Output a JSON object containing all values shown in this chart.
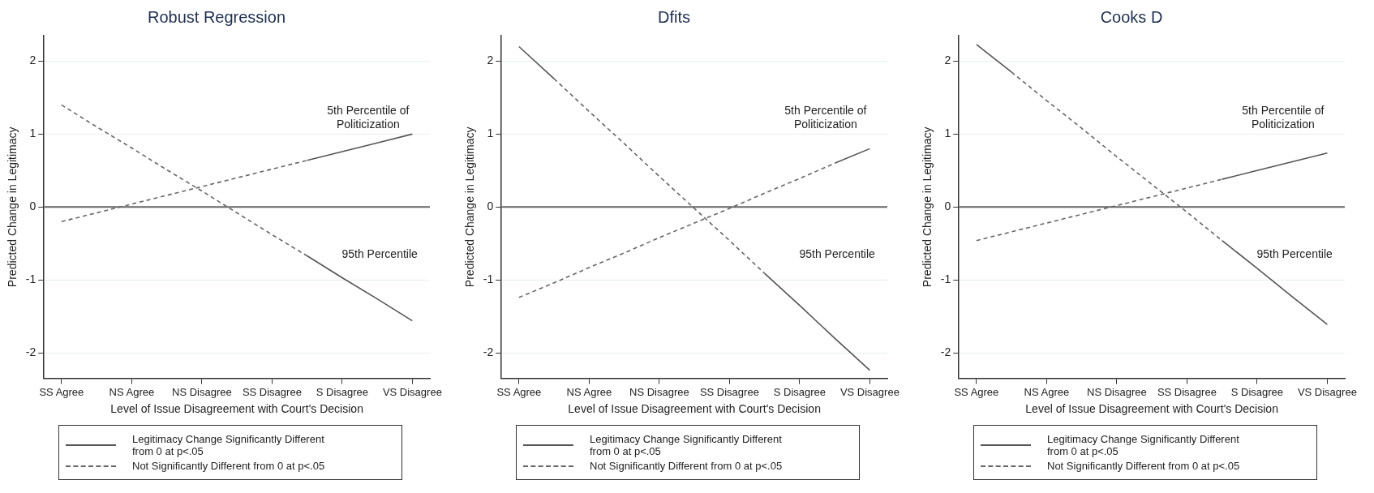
{
  "chart_data": [
    {
      "type": "line",
      "title": "Robust Regression",
      "xlabel": "Level of Issue Disagreement with Court's Decision",
      "ylabel": "Predicted Change in Legitimacy",
      "categories": [
        "SS Agree",
        null,
        "NS Agree",
        null,
        "NS Disagree",
        null,
        "SS Disagree",
        null,
        "S Disagree",
        null,
        "VS Disagree"
      ],
      "ylim": [
        -2.35,
        2.35
      ],
      "yticks": [
        -2,
        -1,
        0,
        1,
        2
      ],
      "grid": "y",
      "legend": "bottom",
      "series": [
        {
          "name": "Legitimacy Change Significantly Different from 0 at p<.05",
          "color": "#555555",
          "line_style": "solid",
          "values": [
            null,
            null,
            null,
            null,
            null,
            null,
            null,
            0.64,
            0.76,
            0.88,
            1.0
          ]
        },
        {
          "name": "Not Significantly Different from 0 at p<.05",
          "color": "#666666",
          "line_style": "dashed",
          "values": [
            -0.2,
            -0.08,
            0.04,
            0.16,
            0.28,
            0.4,
            0.52,
            0.64,
            null,
            null,
            null
          ]
        },
        {
          "color": "#555555",
          "line_style": "solid",
          "values": [
            null,
            null,
            null,
            null,
            null,
            null,
            null,
            -0.67,
            -0.97,
            -1.26,
            -1.56
          ]
        },
        {
          "color": "#666666",
          "line_style": "dashed",
          "values": [
            1.4,
            1.1,
            0.81,
            0.51,
            0.22,
            -0.08,
            -0.38,
            -0.67,
            null,
            null,
            null
          ]
        }
      ],
      "ref_lines": [
        {
          "axis": "y",
          "value": 0,
          "color": "#666666"
        }
      ],
      "annotations": [
        "5th Percentile of Politicization",
        "95th Percentile"
      ]
    },
    {
      "type": "line",
      "title": "Dfits",
      "xlabel": "Level of Issue Disagreement with Court's Decision",
      "ylabel": "Predicted Change in Legitimacy",
      "categories": [
        "SS Agree",
        null,
        "NS Agree",
        null,
        "NS Disagree",
        null,
        "SS Disagree",
        null,
        "S Disagree",
        null,
        "VS Disagree"
      ],
      "ylim": [
        -2.35,
        2.35
      ],
      "yticks": [
        -2,
        -1,
        0,
        1,
        2
      ],
      "grid": "y",
      "legend": "bottom",
      "series": [
        {
          "name": "Legitimacy Change Significantly Different from 0 at p<.05",
          "color": "#555555",
          "line_style": "solid",
          "values": [
            null,
            null,
            null,
            null,
            null,
            null,
            null,
            null,
            null,
            0.6,
            0.8
          ]
        },
        {
          "name": "Not Significantly Different from 0 at p<.05",
          "color": "#666666",
          "line_style": "dashed",
          "values": [
            -1.24,
            -1.04,
            -0.83,
            -0.63,
            -0.42,
            -0.22,
            -0.02,
            0.19,
            0.39,
            0.6,
            null
          ]
        },
        {
          "color": "#555555",
          "line_style": "solid",
          "values": [
            2.2,
            1.76,
            null,
            null,
            null,
            null,
            null,
            -0.91,
            -1.35,
            -1.8,
            -2.24
          ]
        },
        {
          "color": "#666666",
          "line_style": "dashed",
          "values": [
            null,
            1.76,
            1.31,
            0.87,
            0.42,
            -0.02,
            -0.46,
            -0.91,
            null,
            null,
            null
          ]
        }
      ],
      "ref_lines": [
        {
          "axis": "y",
          "value": 0,
          "color": "#666666"
        }
      ],
      "annotations": [
        "5th Percentile of Politicization",
        "95th Percentile"
      ]
    },
    {
      "type": "line",
      "title": "Cooks D",
      "xlabel": "Level of Issue Disagreement with Court's Decision",
      "ylabel": "Predicted Change in Legitimacy",
      "categories": [
        "SS Agree",
        null,
        "NS Agree",
        null,
        "NS Disagree",
        null,
        "SS Disagree",
        null,
        "S Disagree",
        null,
        "VS Disagree"
      ],
      "ylim": [
        -2.35,
        2.35
      ],
      "yticks": [
        -2,
        -1,
        0,
        1,
        2
      ],
      "grid": "y",
      "legend": "bottom",
      "series": [
        {
          "name": "Legitimacy Change Significantly Different from 0 at p<.05",
          "color": "#555555",
          "line_style": "solid",
          "values": [
            null,
            null,
            null,
            null,
            null,
            null,
            null,
            0.38,
            0.5,
            0.62,
            0.74
          ]
        },
        {
          "name": "Not Significantly Different from 0 at p<.05",
          "color": "#666666",
          "line_style": "dashed",
          "values": [
            -0.46,
            -0.34,
            -0.22,
            -0.1,
            0.02,
            0.14,
            0.26,
            0.38,
            null,
            null,
            null
          ]
        },
        {
          "color": "#555555",
          "line_style": "solid",
          "values": [
            2.23,
            1.85,
            null,
            null,
            null,
            null,
            null,
            -0.46,
            -0.84,
            -1.23,
            -1.61
          ]
        },
        {
          "color": "#666666",
          "line_style": "dashed",
          "values": [
            null,
            1.85,
            1.46,
            1.08,
            0.69,
            0.31,
            -0.07,
            -0.46,
            null,
            null,
            null
          ]
        }
      ],
      "ref_lines": [
        {
          "axis": "y",
          "value": 0,
          "color": "#666666"
        }
      ],
      "annotations": [
        "5th Percentile of Politicization",
        "95th Percentile"
      ]
    }
  ]
}
